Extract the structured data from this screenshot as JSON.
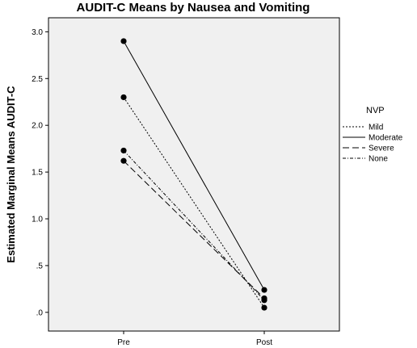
{
  "chart_data": {
    "type": "line",
    "title": "AUDIT-C Means by Nausea and Vomiting",
    "xlabel": "",
    "ylabel": "Estimated Marginal Means AUDIT-C",
    "categories": [
      "Pre",
      "Post"
    ],
    "ylim": [
      -0.2,
      3.15
    ],
    "yticks": [
      {
        "value": 3.0,
        "label": "3.0"
      },
      {
        "value": 2.5,
        "label": "2.5"
      },
      {
        "value": 2.0,
        "label": "2.0"
      },
      {
        "value": 1.5,
        "label": "1.5"
      },
      {
        "value": 1.0,
        "label": "1.0"
      },
      {
        "value": 0.5,
        "label": ".5"
      },
      {
        "value": 0.0,
        "label": ".0"
      }
    ],
    "legend_title": "NVP",
    "legend_position": "right",
    "plot_background": "#f0f0f0",
    "series": [
      {
        "name": "Mild",
        "values": [
          2.3,
          0.05
        ],
        "dash": "2,2"
      },
      {
        "name": "Moderate",
        "values": [
          2.9,
          0.24
        ],
        "dash": ""
      },
      {
        "name": "Severe",
        "values": [
          1.62,
          0.15
        ],
        "dash": "8,4"
      },
      {
        "name": "None",
        "values": [
          1.73,
          0.13
        ],
        "dash": "4,2,1,2"
      }
    ]
  }
}
